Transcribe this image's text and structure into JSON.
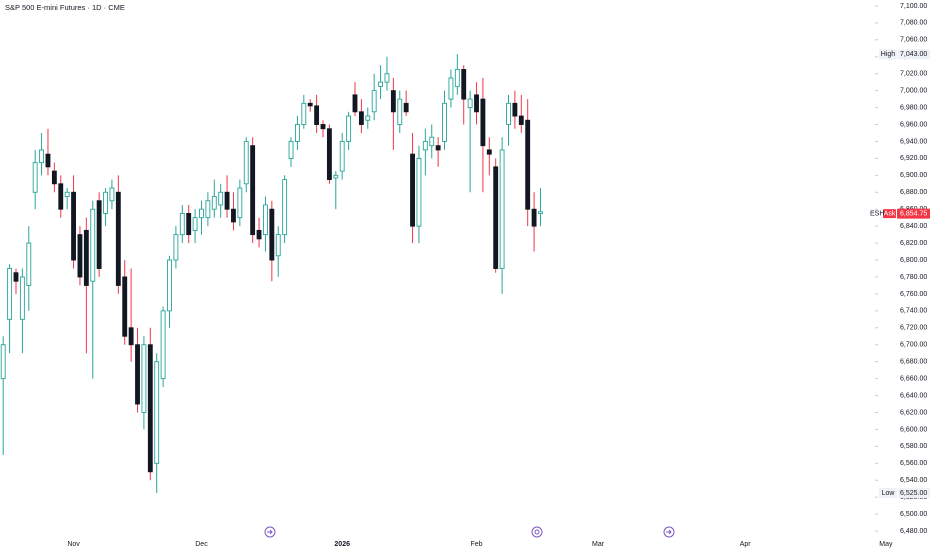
{
  "chart_data": {
    "type": "candlestick",
    "title": "S&P 500 E-mini Futures · 1D · CME",
    "symbol": "ESH",
    "up_color": "#26a69a",
    "down_color": "#131722",
    "down_wick_color": "#f23645",
    "open": [
      6660,
      6730,
      6785,
      6730,
      6770,
      6880,
      6915,
      6925,
      6905,
      6890,
      6875,
      6880,
      6830,
      6835,
      6775,
      6870,
      6855,
      6870,
      6880,
      6780,
      6720,
      6700,
      6620,
      6700,
      6560,
      6660,
      6740,
      6800,
      6830,
      6855,
      6835,
      6850,
      6850,
      6860,
      6865,
      6880,
      6860,
      6850,
      6890,
      6935,
      6835,
      6830,
      6860,
      6805,
      6830,
      6920,
      6940,
      6960,
      6985,
      6982,
      6960,
      6955,
      6897,
      6905,
      6940,
      6995,
      6975,
      6965,
      6975,
      7005,
      7010,
      7000,
      6960,
      6985,
      6925,
      6840,
      6930,
      6935,
      6935,
      6940,
      6990,
      7005,
      7025,
      6980,
      6995,
      6990,
      6930,
      6910,
      6790,
      6960,
      6985,
      6970,
      6965,
      6860,
      6855
    ],
    "high": [
      6710,
      6795,
      6790,
      6790,
      6840,
      6930,
      6950,
      6955,
      6915,
      6900,
      6885,
      6900,
      6840,
      6850,
      6870,
      6880,
      6885,
      6895,
      6900,
      6800,
      6790,
      6720,
      6710,
      6720,
      6690,
      6745,
      6805,
      6840,
      6865,
      6865,
      6860,
      6870,
      6880,
      6895,
      6890,
      6900,
      6880,
      6895,
      6945,
      6945,
      6850,
      6875,
      6870,
      6840,
      6900,
      6945,
      6970,
      6995,
      6990,
      6995,
      6965,
      6960,
      6905,
      6950,
      6975,
      7010,
      6990,
      6980,
      7020,
      7030,
      7040,
      7015,
      7000,
      7000,
      6950,
      6935,
      6955,
      6960,
      6945,
      7000,
      7025,
      7043,
      7030,
      7000,
      7010,
      7015,
      6945,
      6920,
      6945,
      6995,
      7000,
      6995,
      6990,
      6880,
      6885
    ],
    "low": [
      6570,
      6690,
      6760,
      6690,
      6740,
      6860,
      6900,
      6900,
      6880,
      6850,
      6860,
      6790,
      6770,
      6690,
      6660,
      6780,
      6840,
      6860,
      6760,
      6700,
      6680,
      6620,
      6600,
      6540,
      6525,
      6650,
      6720,
      6790,
      6820,
      6820,
      6820,
      6830,
      6840,
      6850,
      6850,
      6850,
      6835,
      6840,
      6880,
      6820,
      6815,
      6810,
      6775,
      6780,
      6820,
      6910,
      6930,
      6955,
      6975,
      6950,
      6945,
      6890,
      6860,
      6895,
      6930,
      6970,
      6950,
      6955,
      6965,
      6990,
      7000,
      6930,
      6950,
      6970,
      6820,
      6820,
      6900,
      6920,
      6910,
      6930,
      6980,
      6995,
      6960,
      6880,
      6960,
      6880,
      6900,
      6785,
      6760,
      6935,
      6955,
      6950,
      6840,
      6810,
      6840
    ],
    "close": [
      6700,
      6790,
      6775,
      6780,
      6820,
      6915,
      6930,
      6910,
      6890,
      6860,
      6880,
      6800,
      6780,
      6770,
      6860,
      6790,
      6880,
      6885,
      6770,
      6710,
      6700,
      6630,
      6700,
      6550,
      6680,
      6740,
      6800,
      6830,
      6855,
      6830,
      6850,
      6860,
      6870,
      6875,
      6880,
      6860,
      6845,
      6885,
      6940,
      6830,
      6825,
      6865,
      6800,
      6830,
      6895,
      6940,
      6960,
      6985,
      6982,
      6960,
      6955,
      6895,
      6900,
      6940,
      6970,
      6975,
      6960,
      6970,
      7000,
      7010,
      7020,
      6975,
      6990,
      6975,
      6840,
      6920,
      6940,
      6945,
      6930,
      6985,
      7015,
      7025,
      6990,
      6990,
      6975,
      6935,
      6925,
      6790,
      6930,
      6985,
      6970,
      6960,
      6860,
      6840,
      6857
    ],
    "xlim": [
      -0.5,
      136.3
    ],
    "xticks": [
      {
        "value": 11,
        "label": "Nov"
      },
      {
        "value": 31,
        "label": "Dec"
      },
      {
        "value": 53,
        "label": "2026"
      },
      {
        "value": 74,
        "label": "Feb"
      },
      {
        "value": 93,
        "label": "Mar"
      },
      {
        "value": 116,
        "label": "Apr"
      },
      {
        "value": 138,
        "label": "May"
      }
    ],
    "ylim": [
      6473,
      7107
    ],
    "yticks": [
      {
        "value": 6480,
        "label": "6,480.00"
      },
      {
        "value": 6500,
        "label": "6,500.00"
      },
      {
        "value": 6520,
        "label": "6,520.00"
      },
      {
        "value": 6540,
        "label": "6,540.00"
      },
      {
        "value": 6560,
        "label": "6,560.00"
      },
      {
        "value": 6580,
        "label": "6,580.00"
      },
      {
        "value": 6600,
        "label": "6,600.00"
      },
      {
        "value": 6620,
        "label": "6,620.00"
      },
      {
        "value": 6640,
        "label": "6,640.00"
      },
      {
        "value": 6660,
        "label": "6,660.00"
      },
      {
        "value": 6680,
        "label": "6,680.00"
      },
      {
        "value": 6700,
        "label": "6,700.00"
      },
      {
        "value": 6720,
        "label": "6,720.00"
      },
      {
        "value": 6740,
        "label": "6,740.00"
      },
      {
        "value": 6760,
        "label": "6,760.00"
      },
      {
        "value": 6780,
        "label": "6,780.00"
      },
      {
        "value": 6800,
        "label": "6,800.00"
      },
      {
        "value": 6820,
        "label": "6,820.00"
      },
      {
        "value": 6840,
        "label": "6,840.00"
      },
      {
        "value": 6860,
        "label": "6,860.00"
      },
      {
        "value": 6880,
        "label": "6,880.00"
      },
      {
        "value": 6900,
        "label": "6,900.00"
      },
      {
        "value": 6920,
        "label": "6,920.00"
      },
      {
        "value": 6940,
        "label": "6,940.00"
      },
      {
        "value": 6960,
        "label": "6,960.00"
      },
      {
        "value": 6980,
        "label": "6,980.00"
      },
      {
        "value": 7000,
        "label": "7,000.00"
      },
      {
        "value": 7020,
        "label": "7,020.00"
      },
      {
        "value": 7040,
        "label": "7,040.00"
      },
      {
        "value": 7060,
        "label": "7,060.00"
      },
      {
        "value": 7080,
        "label": "7,080.00"
      },
      {
        "value": 7100,
        "label": "7,100.00"
      }
    ],
    "markers": [
      {
        "name": "High",
        "value": 7043,
        "label": "7,043.00"
      },
      {
        "name": "Low",
        "value": 6525,
        "label": "6,525.00"
      }
    ],
    "last_price": {
      "tag": "Ask",
      "value": 6854.75,
      "label": "6,854.75",
      "color": "#f23645"
    }
  }
}
